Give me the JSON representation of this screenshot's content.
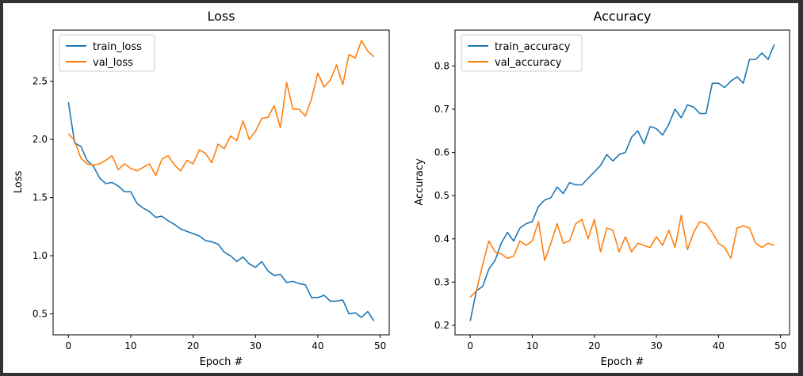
{
  "window": {
    "background": "#333333"
  },
  "chart_data": [
    {
      "type": "line",
      "title": "Loss",
      "xlabel": "Epoch #",
      "ylabel": "Loss",
      "xlim": [
        -2.45,
        51.45
      ],
      "ylim": [
        0.32,
        2.94
      ],
      "xticks": [
        0,
        10,
        20,
        30,
        40,
        50
      ],
      "yticks": [
        0.5,
        1.0,
        1.5,
        2.0,
        2.5
      ],
      "ytick_labels": [
        "0.5",
        "1.0",
        "1.5",
        "2.0",
        "2.5"
      ],
      "grid": false,
      "legend": "top-left",
      "x": [
        0,
        1,
        2,
        3,
        4,
        5,
        6,
        7,
        8,
        9,
        10,
        11,
        12,
        13,
        14,
        15,
        16,
        17,
        18,
        19,
        20,
        21,
        22,
        23,
        24,
        25,
        26,
        27,
        28,
        29,
        30,
        31,
        32,
        33,
        34,
        35,
        36,
        37,
        38,
        39,
        40,
        41,
        42,
        43,
        44,
        45,
        46,
        47,
        48,
        49
      ],
      "series": [
        {
          "name": "train_loss",
          "color": "#1f77b4",
          "values": [
            2.32,
            1.97,
            1.94,
            1.82,
            1.77,
            1.67,
            1.62,
            1.63,
            1.6,
            1.55,
            1.55,
            1.45,
            1.41,
            1.38,
            1.33,
            1.34,
            1.3,
            1.27,
            1.23,
            1.21,
            1.19,
            1.17,
            1.13,
            1.12,
            1.1,
            1.03,
            1.0,
            0.95,
            0.99,
            0.93,
            0.9,
            0.95,
            0.87,
            0.83,
            0.84,
            0.77,
            0.78,
            0.76,
            0.75,
            0.64,
            0.64,
            0.66,
            0.61,
            0.61,
            0.62,
            0.5,
            0.51,
            0.47,
            0.52,
            0.44
          ]
        },
        {
          "name": "val_loss",
          "color": "#ff7f0e",
          "values": [
            2.05,
            1.99,
            1.84,
            1.79,
            1.78,
            1.79,
            1.82,
            1.86,
            1.74,
            1.79,
            1.75,
            1.73,
            1.76,
            1.79,
            1.69,
            1.83,
            1.86,
            1.78,
            1.73,
            1.82,
            1.79,
            1.91,
            1.88,
            1.8,
            1.96,
            1.92,
            2.03,
            1.99,
            2.16,
            2.0,
            2.07,
            2.18,
            2.19,
            2.29,
            2.1,
            2.49,
            2.26,
            2.26,
            2.2,
            2.35,
            2.57,
            2.45,
            2.51,
            2.64,
            2.47,
            2.73,
            2.7,
            2.85,
            2.76,
            2.71
          ]
        }
      ]
    },
    {
      "type": "line",
      "title": "Accuracy",
      "xlabel": "Epoch #",
      "ylabel": "Accuracy",
      "xlim": [
        -2.45,
        51.45
      ],
      "ylim": [
        0.178,
        0.883
      ],
      "xticks": [
        0,
        10,
        20,
        30,
        40,
        50
      ],
      "yticks": [
        0.2,
        0.3,
        0.4,
        0.5,
        0.6,
        0.7,
        0.8
      ],
      "ytick_labels": [
        "0.2",
        "0.3",
        "0.4",
        "0.5",
        "0.6",
        "0.7",
        "0.8"
      ],
      "grid": false,
      "legend": "top-left",
      "x": [
        0,
        1,
        2,
        3,
        4,
        5,
        6,
        7,
        8,
        9,
        10,
        11,
        12,
        13,
        14,
        15,
        16,
        17,
        18,
        19,
        20,
        21,
        22,
        23,
        24,
        25,
        26,
        27,
        28,
        29,
        30,
        31,
        32,
        33,
        34,
        35,
        36,
        37,
        38,
        39,
        40,
        41,
        42,
        43,
        44,
        45,
        46,
        47,
        48,
        49
      ],
      "series": [
        {
          "name": "train_accuracy",
          "color": "#1f77b4",
          "values": [
            0.21,
            0.28,
            0.29,
            0.33,
            0.35,
            0.39,
            0.415,
            0.395,
            0.425,
            0.435,
            0.44,
            0.475,
            0.49,
            0.495,
            0.52,
            0.505,
            0.53,
            0.525,
            0.525,
            0.54,
            0.555,
            0.57,
            0.595,
            0.58,
            0.595,
            0.6,
            0.635,
            0.65,
            0.62,
            0.66,
            0.655,
            0.64,
            0.665,
            0.7,
            0.68,
            0.71,
            0.705,
            0.69,
            0.69,
            0.76,
            0.76,
            0.75,
            0.765,
            0.775,
            0.76,
            0.815,
            0.815,
            0.83,
            0.815,
            0.85
          ]
        },
        {
          "name": "val_accuracy",
          "color": "#ff7f0e",
          "values": [
            0.265,
            0.28,
            0.34,
            0.395,
            0.37,
            0.365,
            0.355,
            0.36,
            0.395,
            0.385,
            0.395,
            0.44,
            0.35,
            0.39,
            0.435,
            0.39,
            0.395,
            0.435,
            0.445,
            0.4,
            0.445,
            0.37,
            0.425,
            0.42,
            0.37,
            0.405,
            0.37,
            0.39,
            0.385,
            0.38,
            0.405,
            0.385,
            0.42,
            0.38,
            0.455,
            0.375,
            0.415,
            0.44,
            0.435,
            0.415,
            0.39,
            0.38,
            0.355,
            0.425,
            0.43,
            0.425,
            0.39,
            0.38,
            0.39,
            0.385
          ]
        }
      ]
    }
  ]
}
